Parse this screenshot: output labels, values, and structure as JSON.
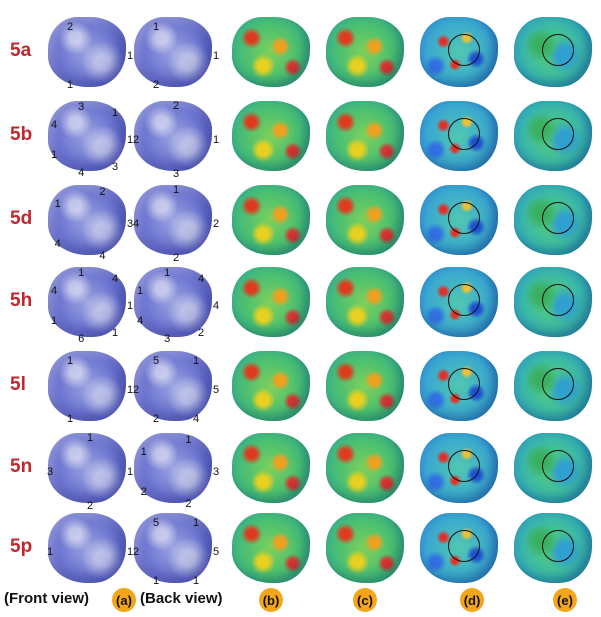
{
  "rows": [
    {
      "label": "5a",
      "callouts_front": [
        "1",
        "1",
        "2"
      ],
      "callouts_back": [
        "1",
        "2",
        "1"
      ]
    },
    {
      "label": "5b",
      "callouts_front": [
        "1",
        "3",
        "4",
        "1",
        "4",
        "3",
        "1"
      ],
      "callouts_back": [
        "1",
        "3",
        "2",
        "2"
      ]
    },
    {
      "label": "5d",
      "callouts_front": [
        "3",
        "4",
        "4",
        "1",
        "2"
      ],
      "callouts_back": [
        "2",
        "2",
        "4",
        "1"
      ]
    },
    {
      "label": "5h",
      "callouts_front": [
        "1",
        "1",
        "6",
        "1",
        "4",
        "1",
        "4"
      ],
      "callouts_back": [
        "4",
        "2",
        "3",
        "4",
        "1",
        "1",
        "4"
      ]
    },
    {
      "label": "5l",
      "callouts_front": [
        "1",
        "1",
        "1"
      ],
      "callouts_back": [
        "5",
        "4",
        "2",
        "2",
        "5",
        "1"
      ]
    },
    {
      "label": "5n",
      "callouts_front": [
        "1",
        "2",
        "3",
        "1"
      ],
      "callouts_back": [
        "3",
        "2",
        "2",
        "1",
        "1"
      ]
    },
    {
      "label": "5p",
      "callouts_front": [
        "1",
        "1"
      ],
      "callouts_back": [
        "5",
        "1",
        "1",
        "2",
        "5",
        "1"
      ]
    }
  ],
  "bottom": {
    "front_view": "(Front view)",
    "back_view": "(Back view)",
    "panels": [
      "(a)",
      "(b)",
      "(c)",
      "(d)",
      "(e)"
    ]
  }
}
